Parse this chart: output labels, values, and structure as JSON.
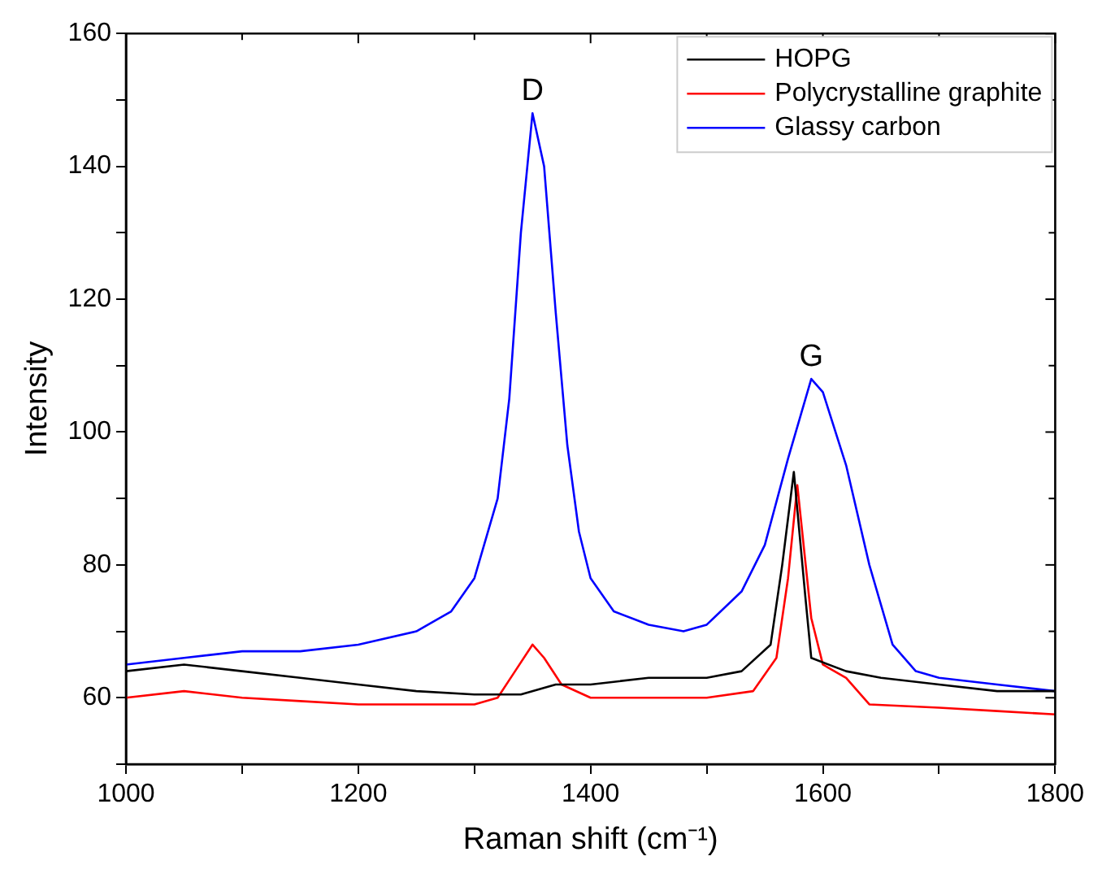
{
  "chart_data": {
    "type": "line",
    "xlabel": "Raman shift (cm⁻¹)",
    "ylabel": "Intensity",
    "xlim": [
      1000,
      1800
    ],
    "ylim": [
      50,
      160
    ],
    "xticks": [
      1000,
      {
        "value": 1100,
        "label": null
      },
      1200,
      {
        "value": 1300,
        "label": null
      },
      1400,
      {
        "value": 1500,
        "label": null
      },
      1600,
      {
        "value": 1700,
        "label": null
      },
      1800
    ],
    "yticks": [
      {
        "value": 50,
        "label": null
      },
      60,
      {
        "value": 70,
        "label": null
      },
      80,
      {
        "value": 90,
        "label": null
      },
      100,
      {
        "value": 110,
        "label": null
      },
      120,
      {
        "value": 130,
        "label": null
      },
      140,
      {
        "value": 150,
        "label": null
      },
      160
    ],
    "grid": false,
    "legend": "top right",
    "marker": "none",
    "line_style": "solid",
    "annotations": [
      {
        "text": "D",
        "x": 1350,
        "y": 148
      },
      {
        "text": "G",
        "x": 1590,
        "y": 108
      }
    ],
    "series": [
      {
        "name": "HOPG",
        "color": "#000000",
        "x": [
          1000,
          1050,
          1100,
          1150,
          1200,
          1250,
          1300,
          1340,
          1370,
          1400,
          1450,
          1500,
          1530,
          1555,
          1565,
          1575,
          1585,
          1590,
          1620,
          1650,
          1700,
          1750,
          1800
        ],
        "values": [
          64,
          65,
          64,
          63,
          62,
          61,
          60.5,
          60.5,
          62,
          62,
          63,
          63,
          64,
          68,
          80,
          94,
          75,
          66,
          64,
          63,
          62,
          61,
          61
        ]
      },
      {
        "name": "Polycrystalline graphite",
        "color": "#ff0000",
        "x": [
          1000,
          1050,
          1100,
          1150,
          1200,
          1250,
          1300,
          1320,
          1335,
          1350,
          1360,
          1375,
          1400,
          1450,
          1500,
          1540,
          1560,
          1570,
          1578,
          1590,
          1600,
          1620,
          1640,
          1700,
          1750,
          1800
        ],
        "values": [
          60,
          61,
          60,
          59.5,
          59,
          59,
          59,
          60,
          64,
          68,
          66,
          62,
          60,
          60,
          60,
          61,
          66,
          78,
          92,
          72,
          65,
          63,
          59,
          58.5,
          58,
          57.5
        ]
      },
      {
        "name": "Glassy carbon",
        "color": "#0000ff",
        "x": [
          1000,
          1050,
          1100,
          1150,
          1200,
          1250,
          1280,
          1300,
          1320,
          1330,
          1340,
          1350,
          1360,
          1370,
          1380,
          1390,
          1400,
          1420,
          1450,
          1480,
          1500,
          1530,
          1550,
          1570,
          1590,
          1600,
          1620,
          1640,
          1660,
          1680,
          1700,
          1750,
          1800
        ],
        "values": [
          65,
          66,
          67,
          67,
          68,
          70,
          73,
          78,
          90,
          105,
          130,
          148,
          140,
          118,
          98,
          85,
          78,
          73,
          71,
          70,
          71,
          76,
          83,
          96,
          108,
          106,
          95,
          80,
          68,
          64,
          63,
          62,
          61
        ]
      }
    ]
  }
}
